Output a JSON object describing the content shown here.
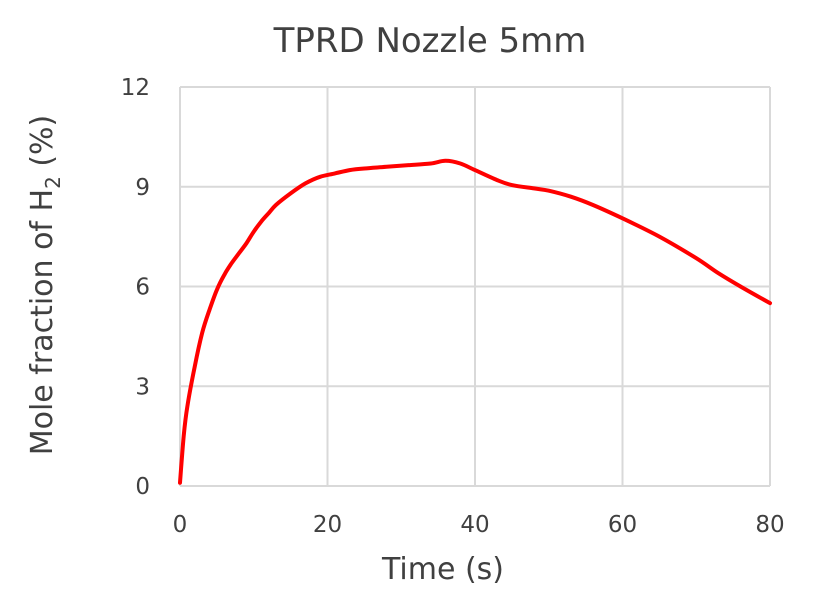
{
  "chart_data": {
    "type": "line",
    "title": "TPRD Nozzle 5mm",
    "xlabel": "Time (s)",
    "ylabel": {
      "prefix": "Mole fraction of H",
      "subscript": "2",
      "suffix": " (%)"
    },
    "xlim": [
      0,
      80
    ],
    "ylim": [
      0,
      12
    ],
    "x_ticks": [
      "0",
      "20",
      "40",
      "60",
      "80"
    ],
    "y_ticks": [
      "0",
      "3",
      "6",
      "9",
      "12"
    ],
    "grid": true,
    "legend": "none",
    "series": [
      {
        "color": "#ff0000",
        "x": [
          0,
          0.5,
          1,
          2,
          3,
          4,
          5,
          6,
          7,
          8,
          9,
          10,
          11,
          12,
          13,
          15,
          17,
          19,
          21,
          23,
          25,
          28,
          31,
          34,
          36,
          38,
          40,
          43,
          45,
          48,
          50,
          53,
          56,
          60,
          65,
          70,
          73,
          76,
          80
        ],
        "y": [
          0.1,
          1.5,
          2.4,
          3.6,
          4.6,
          5.3,
          5.9,
          6.35,
          6.7,
          7.0,
          7.3,
          7.65,
          7.95,
          8.2,
          8.45,
          8.8,
          9.1,
          9.3,
          9.4,
          9.5,
          9.55,
          9.6,
          9.65,
          9.7,
          9.78,
          9.7,
          9.5,
          9.2,
          9.05,
          8.95,
          8.88,
          8.7,
          8.45,
          8.05,
          7.5,
          6.85,
          6.4,
          6.0,
          5.5
        ]
      }
    ]
  }
}
